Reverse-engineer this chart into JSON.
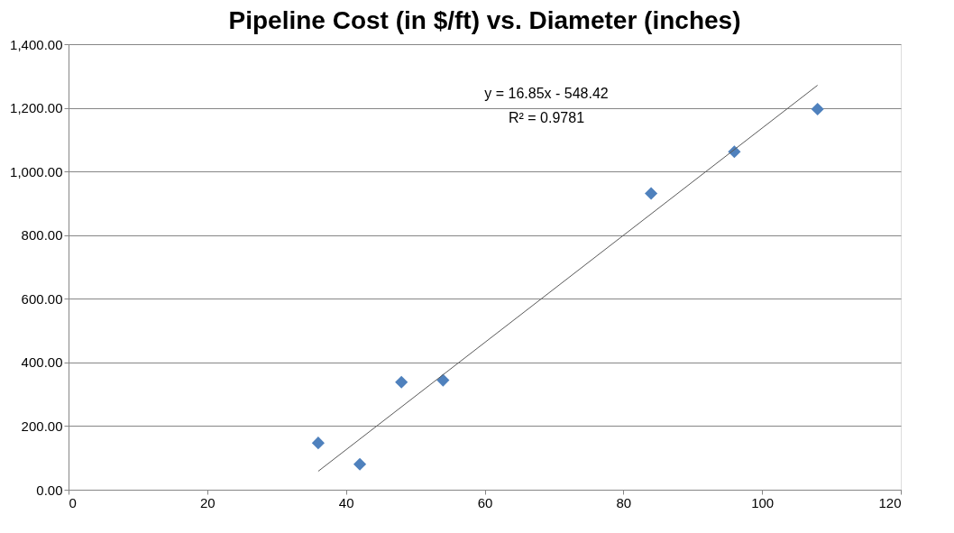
{
  "chart_data": {
    "type": "scatter",
    "title": "Pipeline Cost (in $/ft) vs. Diameter (inches)",
    "grid": "y",
    "legend": false,
    "xlim": [
      0,
      120
    ],
    "xticks": [
      0,
      20,
      40,
      60,
      80,
      100,
      120
    ],
    "ylim": [
      0,
      1400
    ],
    "yticks": [
      {
        "value": 0,
        "label": "0.00"
      },
      {
        "value": 200,
        "label": "200.00"
      },
      {
        "value": 400,
        "label": "400.00"
      },
      {
        "value": 600,
        "label": "600.00"
      },
      {
        "value": 800,
        "label": "800.00"
      },
      {
        "value": 1000,
        "label": "1,000.00"
      },
      {
        "value": 1200,
        "label": "1,200.00"
      },
      {
        "value": 1400,
        "label": "1,400.00"
      }
    ],
    "series": [
      {
        "color": "#4f81bd",
        "marker": "diamond",
        "x": [
          36,
          42,
          48,
          54,
          84,
          96,
          108
        ],
        "values": [
          147,
          80,
          338,
          344,
          931,
          1062,
          1196
        ]
      },
      {
        "type": "line",
        "color": "#595959",
        "line_style": "solid",
        "x": [
          36,
          108
        ],
        "values": [
          58,
          1271
        ]
      }
    ],
    "annotations": [
      "y = 16.85x - 548.42",
      "R² = 0.9781"
    ]
  }
}
